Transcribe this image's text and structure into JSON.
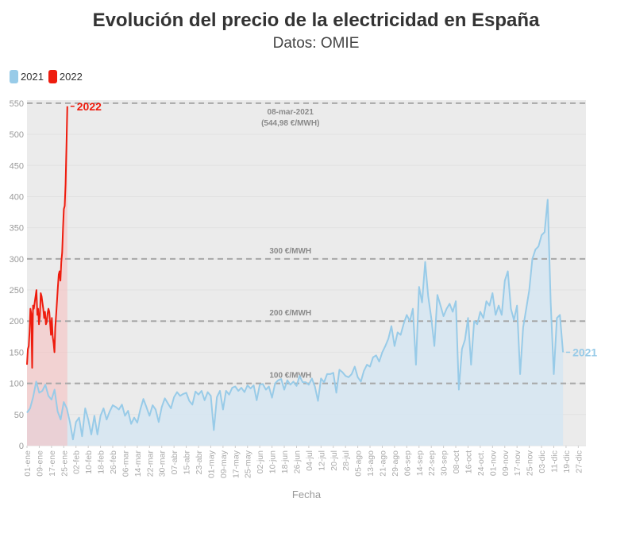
{
  "header": {
    "title": "Evolución del precio de la electricidad en España",
    "subtitle": "Datos: OMIE"
  },
  "legend": [
    {
      "label": "2021",
      "color": "#98cbe8"
    },
    {
      "label": "2022",
      "color": "#ee1c0e"
    }
  ],
  "chart_data": {
    "type": "line",
    "title": "Evolución del precio de la electricidad en España",
    "subtitle": "Datos: OMIE",
    "xlabel": "Fecha",
    "ylabel": "",
    "ylim": [
      0,
      555
    ],
    "yticks": [
      0,
      50,
      100,
      150,
      200,
      250,
      300,
      350,
      400,
      450,
      500,
      550
    ],
    "grid": true,
    "legend_position": "top-left",
    "x_tick_labels": [
      "01-ene",
      "09-ene",
      "17-ene",
      "25-ene",
      "02-feb",
      "10-feb",
      "18-feb",
      "26-feb",
      "06-mar",
      "14-mar",
      "22-mar",
      "30-mar",
      "07-abr",
      "15-abr",
      "23-abr",
      "01-may",
      "09-may",
      "17-may",
      "25-may",
      "02-jun",
      "10-jun",
      "18-jun",
      "26-jun",
      "04-jul",
      "12-jul",
      "20-jul",
      "28-jul",
      "05-ago",
      "13-ago",
      "21-ago",
      "29-ago",
      "06-sep",
      "14-sep",
      "22-sep",
      "30-sep",
      "08-oct",
      "16-oct",
      "24-oct.",
      "01-nov",
      "09-nov",
      "17-nov",
      "25-nov",
      "03-dic",
      "11-dic",
      "19-dic",
      "27-dic"
    ],
    "reference_lines": [
      {
        "value": 100,
        "label": "100 €/MWH"
      },
      {
        "value": 200,
        "label": "200 €/MWH"
      },
      {
        "value": 300,
        "label": "300 €/MWH"
      },
      {
        "value": 550,
        "label": "08-mar-2021",
        "sublabel": "(544,98 €/MWH)"
      }
    ],
    "series": [
      {
        "name": "2021",
        "color": "#98cbe8",
        "end_label": "2021",
        "day_step": 2,
        "values": [
          53,
          60,
          78,
          103,
          85,
          88,
          98,
          80,
          74,
          90,
          55,
          42,
          70,
          60,
          38,
          10,
          38,
          45,
          15,
          60,
          42,
          18,
          48,
          18,
          48,
          60,
          42,
          55,
          65,
          62,
          58,
          66,
          48,
          56,
          35,
          45,
          37,
          58,
          75,
          62,
          48,
          65,
          58,
          38,
          62,
          76,
          68,
          60,
          78,
          86,
          80,
          83,
          85,
          72,
          66,
          87,
          82,
          88,
          73,
          86,
          80,
          25,
          78,
          88,
          58,
          88,
          82,
          93,
          95,
          88,
          93,
          86,
          97,
          92,
          97,
          73,
          98,
          99,
          90,
          95,
          77,
          100,
          105,
          107,
          90,
          105,
          98,
          103,
          96,
          112,
          102,
          102,
          98,
          108,
          95,
          72,
          108,
          102,
          115,
          115,
          117,
          85,
          122,
          118,
          112,
          110,
          115,
          127,
          110,
          103,
          120,
          130,
          127,
          142,
          145,
          135,
          150,
          160,
          172,
          192,
          160,
          182,
          178,
          196,
          210,
          200,
          220,
          130,
          255,
          230,
          295,
          240,
          205,
          160,
          242,
          225,
          208,
          220,
          228,
          215,
          232,
          90,
          155,
          170,
          205,
          130,
          200,
          195,
          215,
          205,
          232,
          225,
          245,
          210,
          225,
          210,
          265,
          280,
          220,
          202,
          225,
          115,
          190,
          220,
          250,
          300,
          315,
          320,
          338,
          343,
          395,
          230,
          115,
          205,
          210,
          150
        ]
      },
      {
        "name": "2022",
        "color": "#ee1c0e",
        "end_label": "2022",
        "day_step": 0.56,
        "values": [
          130,
          155,
          160,
          183,
          220,
          212,
          125,
          225,
          220,
          230,
          240,
          250,
          210,
          220,
          195,
          208,
          245,
          240,
          230,
          220,
          205,
          215,
          195,
          198,
          212,
          220,
          215,
          195,
          178,
          205,
          175,
          165,
          150,
          190,
          210,
          232,
          255,
          275,
          280,
          265,
          295,
          310,
          350,
          380,
          385,
          420,
          480,
          545
        ]
      }
    ]
  }
}
